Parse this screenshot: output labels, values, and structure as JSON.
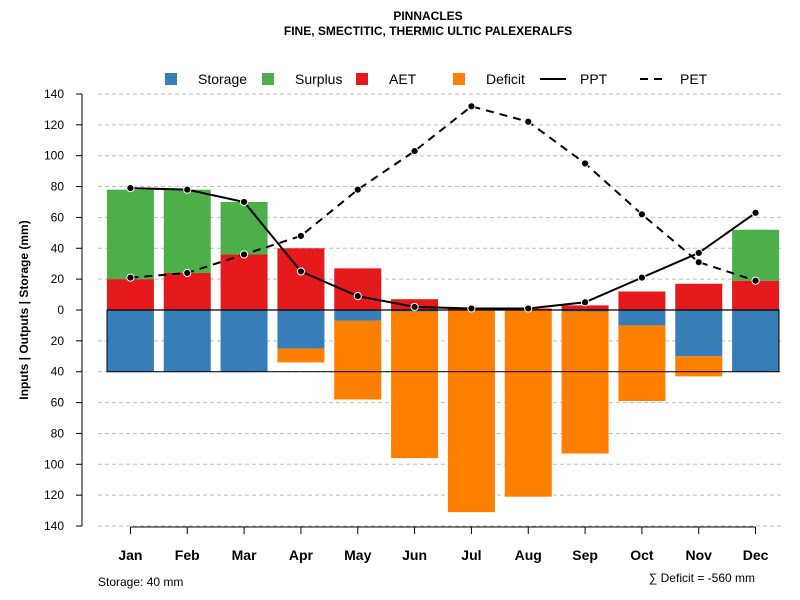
{
  "chart_data": {
    "type": "bar",
    "title": "PINNACLES",
    "subtitle": "FINE, SMECTITIC, THERMIC ULTIC PALEXERALFS",
    "ylabel": "Inputs | Outputs | Storage     (mm)",
    "ylim": [
      -140,
      140
    ],
    "yticks": [
      140,
      120,
      100,
      80,
      60,
      40,
      20,
      0,
      -20,
      -40,
      -60,
      -80,
      -100,
      -120,
      -140
    ],
    "ytick_labels": [
      "140",
      "120",
      "100",
      "80",
      "60",
      "40",
      "20",
      "0",
      "20",
      "40",
      "60",
      "80",
      "100",
      "120",
      "140"
    ],
    "grid": true,
    "legend_position": "top",
    "categories": [
      "Jan",
      "Feb",
      "Mar",
      "Apr",
      "May",
      "Jun",
      "Jul",
      "Aug",
      "Sep",
      "Oct",
      "Nov",
      "Dec"
    ],
    "legend": [
      {
        "label": "Storage",
        "kind": "box",
        "color": "#377EB8"
      },
      {
        "label": "Surplus",
        "kind": "box",
        "color": "#4DAF4A"
      },
      {
        "label": "AET",
        "kind": "box",
        "color": "#E41A1C"
      },
      {
        "label": "Deficit",
        "kind": "box",
        "color": "#FF7F00"
      },
      {
        "label": "PPT",
        "kind": "solid"
      },
      {
        "label": "PET",
        "kind": "dashed"
      }
    ],
    "series": [
      {
        "name": "AET",
        "values": [
          20,
          24,
          36,
          40,
          27,
          7,
          1,
          1,
          3,
          12,
          17,
          19
        ]
      },
      {
        "name": "Surplus",
        "values": [
          58,
          54,
          34,
          0,
          0,
          0,
          0,
          0,
          0,
          0,
          0,
          33
        ]
      },
      {
        "name": "Storage",
        "values": [
          40,
          40,
          40,
          25,
          7,
          1,
          0,
          0,
          1,
          10,
          30,
          40
        ]
      },
      {
        "name": "Deficit",
        "values": [
          0,
          0,
          0,
          9,
          51,
          95,
          131,
          121,
          92,
          49,
          13,
          0
        ]
      },
      {
        "name": "PPT",
        "values": [
          79,
          78,
          70,
          25,
          9,
          2,
          1,
          1,
          5,
          21,
          37,
          63
        ]
      },
      {
        "name": "PET",
        "values": [
          21,
          24,
          36,
          48,
          78,
          103,
          132,
          122,
          95,
          62,
          31,
          19
        ]
      }
    ],
    "storage_capacity": 40,
    "footer_left": "Storage: 40 mm",
    "footer_right": "∑ Deficit = -560 mm",
    "colors": {
      "storage": "#377EB8",
      "surplus": "#4DAF4A",
      "aet": "#E41A1C",
      "deficit": "#FF7F00",
      "grid": "#BEBEBE",
      "line": "#000000"
    }
  }
}
